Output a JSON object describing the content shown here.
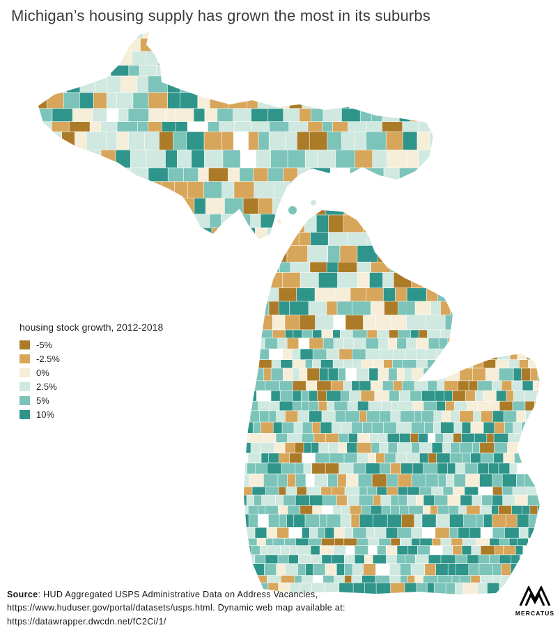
{
  "title": "Michigan’s housing supply has grown the most in its suburbs",
  "legend": {
    "title": "housing stock growth, 2012-2018",
    "items": [
      {
        "label": "-5%",
        "color": "#ac7b28"
      },
      {
        "label": "-2.5%",
        "color": "#d8a65a"
      },
      {
        "label": "0%",
        "color": "#f6eed8"
      },
      {
        "label": "2.5%",
        "color": "#cfe8e0"
      },
      {
        "label": "5%",
        "color": "#7cc4b9"
      },
      {
        "label": "10%",
        "color": "#2f958a"
      }
    ]
  },
  "source": {
    "label": "Source",
    "line1_rest": ": HUD Aggregated USPS Administrative Data on Address Vacancies,",
    "line2": "https://www.huduser.gov/portal/datasets/usps.html. Dynamic web map available at:",
    "line3": "https://datawrapper.dwcdn.net/fC2Ci/1/"
  },
  "logo": {
    "text": "MERCATUS"
  },
  "chart_data": {
    "type": "choropleth",
    "region": "Michigan (upper and lower peninsulas, small-area zones)",
    "title": "Michigan’s housing supply has grown the most in its suburbs",
    "metric": "housing stock growth, 2012-2018",
    "legend_bins": [
      {
        "label": "-5%",
        "color": "#ac7b28"
      },
      {
        "label": "-2.5%",
        "color": "#d8a65a"
      },
      {
        "label": "0%",
        "color": "#f6eed8"
      },
      {
        "label": "2.5%",
        "color": "#cfe8e0"
      },
      {
        "label": "5%",
        "color": "#7cc4b9"
      },
      {
        "label": "10%",
        "color": "#2f958a"
      }
    ],
    "spatial_pattern": "Teal shades (positive growth) dominate southern and suburban lower Michigan; brown shades (decline) cluster in the northern lower peninsula and the Thumb; the Upper Peninsula is a mix of teal and brown with cream patches."
  }
}
